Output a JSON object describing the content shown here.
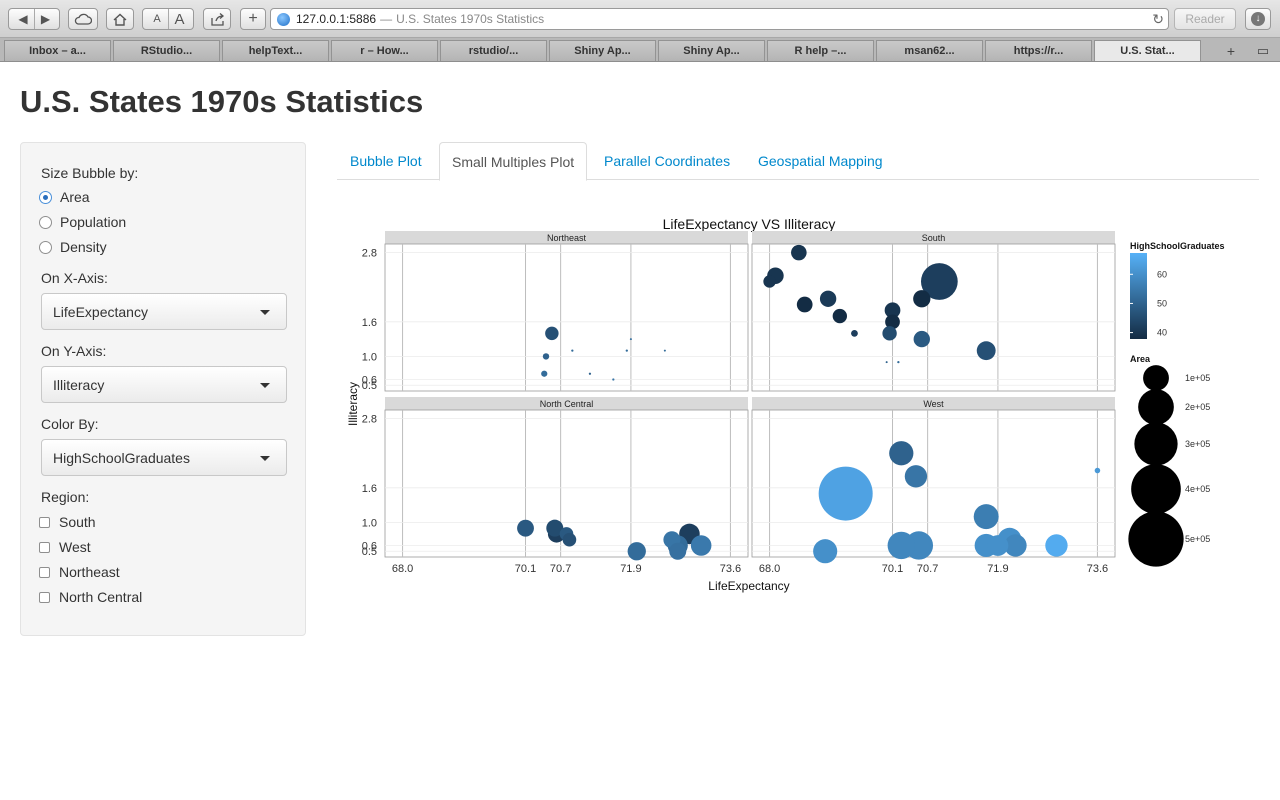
{
  "browser": {
    "url_host": "127.0.0.1:5886",
    "url_separator": "—",
    "page_title": "U.S. States 1970s Statistics",
    "reader_label": "Reader",
    "font_small": "A",
    "font_large": "A",
    "tabs": [
      {
        "label": "Inbox – a..."
      },
      {
        "label": "RStudio..."
      },
      {
        "label": "helpText..."
      },
      {
        "label": "r – How..."
      },
      {
        "label": "rstudio/..."
      },
      {
        "label": "Shiny Ap..."
      },
      {
        "label": "Shiny Ap..."
      },
      {
        "label": "R help –..."
      },
      {
        "label": "msan62..."
      },
      {
        "label": "https://r..."
      },
      {
        "label": "U.S. Stat..."
      }
    ]
  },
  "app": {
    "title": "U.S. States 1970s Statistics"
  },
  "sidebar": {
    "size_label": "Size Bubble by:",
    "size_options": [
      {
        "label": "Area",
        "selected": true
      },
      {
        "label": "Population",
        "selected": false
      },
      {
        "label": "Density",
        "selected": false
      }
    ],
    "x_label": "On X-Axis:",
    "x_value": "LifeExpectancy",
    "y_label": "On Y-Axis:",
    "y_value": "Illiteracy",
    "color_label": "Color By:",
    "color_value": "HighSchoolGraduates",
    "region_label": "Region:",
    "regions": [
      {
        "label": "South",
        "checked": false
      },
      {
        "label": "West",
        "checked": false
      },
      {
        "label": "Northeast",
        "checked": false
      },
      {
        "label": "North Central",
        "checked": false
      }
    ]
  },
  "tabs": [
    {
      "label": "Bubble Plot",
      "active": false
    },
    {
      "label": "Small Multiples Plot",
      "active": true
    },
    {
      "label": "Parallel Coordinates",
      "active": false
    },
    {
      "label": "Geospatial Mapping",
      "active": false
    }
  ],
  "colors": {
    "accent": "#0088cc",
    "panel_bg": "#ffffff",
    "strip_bg": "#d9d9d9",
    "grid": "#d0d0d0",
    "color_low": "#132b43",
    "color_high": "#56b1f7"
  },
  "chart_data": {
    "type": "scatter",
    "title": "LifeExpectancy VS Illiteracy",
    "xlabel": "LifeExpectancy",
    "ylabel": "Illiteracy",
    "x_ticks": [
      "68.0",
      "70.1",
      "70.7",
      "71.9",
      "73.6"
    ],
    "x_tick_values": [
      68.0,
      70.1,
      70.7,
      71.9,
      73.6
    ],
    "y_ticks": [
      "0.5",
      "0.6",
      "1.0",
      "1.6",
      "2.8"
    ],
    "y_tick_values": [
      0.5,
      0.6,
      1.0,
      1.6,
      2.8
    ],
    "xlim": [
      67.7,
      73.9
    ],
    "ylim": [
      0.4,
      2.95
    ],
    "color_legend": {
      "title": "HighSchoolGraduates",
      "range": [
        37.8,
        67.3
      ],
      "ticks": [
        40,
        50,
        60
      ]
    },
    "size_legend": {
      "title": "Area",
      "values": [
        100000,
        200000,
        300000,
        400000,
        500000
      ],
      "labels": [
        "1e+05",
        "2e+05",
        "3e+05",
        "4e+05",
        "5e+05"
      ]
    },
    "facets": [
      {
        "name": "Northeast",
        "points": [
          {
            "x": 70.55,
            "y": 1.4,
            "hs": 46.0,
            "area": 35000
          },
          {
            "x": 70.45,
            "y": 1.0,
            "hs": 50.0,
            "area": 8000
          },
          {
            "x": 70.42,
            "y": 0.7,
            "hs": 52.0,
            "area": 7500
          },
          {
            "x": 70.9,
            "y": 1.1,
            "hs": 52.0,
            "area": 1000
          },
          {
            "x": 71.2,
            "y": 0.7,
            "hs": 50.0,
            "area": 1000
          },
          {
            "x": 71.6,
            "y": 0.6,
            "hs": 54.0,
            "area": 1000
          },
          {
            "x": 71.83,
            "y": 1.1,
            "hs": 52.0,
            "area": 1000
          },
          {
            "x": 71.9,
            "y": 1.3,
            "hs": 52.0,
            "area": 300
          },
          {
            "x": 72.48,
            "y": 1.1,
            "hs": 52.0,
            "area": 600
          }
        ]
      },
      {
        "name": "South",
        "points": [
          {
            "x": 68.0,
            "y": 2.3,
            "hs": 40.0,
            "area": 30000
          },
          {
            "x": 68.1,
            "y": 2.4,
            "hs": 40.0,
            "area": 53000
          },
          {
            "x": 68.5,
            "y": 2.8,
            "hs": 40.0,
            "area": 47000
          },
          {
            "x": 68.6,
            "y": 1.9,
            "hs": 38.0,
            "area": 48000
          },
          {
            "x": 69.0,
            "y": 2.0,
            "hs": 41.0,
            "area": 52000
          },
          {
            "x": 69.2,
            "y": 1.7,
            "hs": 38.0,
            "area": 40000
          },
          {
            "x": 69.45,
            "y": 1.4,
            "hs": 42.0,
            "area": 9000
          },
          {
            "x": 70.1,
            "y": 1.8,
            "hs": 40.0,
            "area": 48000
          },
          {
            "x": 70.1,
            "y": 1.6,
            "hs": 38.0,
            "area": 42000
          },
          {
            "x": 70.05,
            "y": 1.4,
            "hs": 45.0,
            "area": 40000
          },
          {
            "x": 70.0,
            "y": 0.9,
            "hs": 50.0,
            "area": 100
          },
          {
            "x": 70.2,
            "y": 0.9,
            "hs": 52.0,
            "area": 1000
          },
          {
            "x": 70.6,
            "y": 2.0,
            "hs": 38.0,
            "area": 58000
          },
          {
            "x": 70.6,
            "y": 1.3,
            "hs": 48.0,
            "area": 52000
          },
          {
            "x": 70.9,
            "y": 2.3,
            "hs": 42.0,
            "area": 262000
          },
          {
            "x": 71.7,
            "y": 1.1,
            "hs": 46.0,
            "area": 69000
          }
        ]
      },
      {
        "name": "North Central",
        "points": [
          {
            "x": 70.1,
            "y": 0.9,
            "hs": 48.0,
            "area": 55000
          },
          {
            "x": 70.6,
            "y": 0.9,
            "hs": 45.0,
            "area": 56000
          },
          {
            "x": 70.63,
            "y": 0.8,
            "hs": 42.0,
            "area": 58000
          },
          {
            "x": 70.8,
            "y": 0.8,
            "hs": 48.0,
            "area": 36000
          },
          {
            "x": 70.85,
            "y": 0.7,
            "hs": 46.0,
            "area": 36000
          },
          {
            "x": 72.0,
            "y": 0.5,
            "hs": 52.0,
            "area": 65000
          },
          {
            "x": 72.6,
            "y": 0.7,
            "hs": 54.0,
            "area": 56000
          },
          {
            "x": 72.7,
            "y": 0.6,
            "hs": 52.0,
            "area": 79000
          },
          {
            "x": 72.7,
            "y": 0.5,
            "hs": 53.0,
            "area": 56000
          },
          {
            "x": 72.9,
            "y": 0.8,
            "hs": 42.0,
            "area": 82000
          },
          {
            "x": 73.1,
            "y": 0.6,
            "hs": 55.0,
            "area": 82000
          }
        ]
      },
      {
        "name": "West",
        "points": [
          {
            "x": 68.95,
            "y": 0.5,
            "hs": 60.0,
            "area": 113000
          },
          {
            "x": 69.3,
            "y": 1.5,
            "hs": 64.0,
            "area": 566000
          },
          {
            "x": 70.25,
            "y": 2.2,
            "hs": 50.0,
            "area": 114000
          },
          {
            "x": 70.5,
            "y": 1.8,
            "hs": 54.0,
            "area": 97000
          },
          {
            "x": 70.25,
            "y": 0.6,
            "hs": 58.0,
            "area": 146000
          },
          {
            "x": 70.55,
            "y": 0.6,
            "hs": 58.0,
            "area": 156000
          },
          {
            "x": 71.7,
            "y": 1.1,
            "hs": 56.0,
            "area": 121000
          },
          {
            "x": 71.7,
            "y": 0.6,
            "hs": 60.0,
            "area": 104000
          },
          {
            "x": 71.9,
            "y": 0.6,
            "hs": 60.0,
            "area": 84000
          },
          {
            "x": 72.1,
            "y": 0.7,
            "hs": 60.0,
            "area": 110000
          },
          {
            "x": 72.2,
            "y": 0.6,
            "hs": 58.0,
            "area": 97000
          },
          {
            "x": 72.9,
            "y": 0.6,
            "hs": 66.0,
            "area": 97000
          },
          {
            "x": 73.6,
            "y": 1.9,
            "hs": 62.0,
            "area": 6000
          }
        ]
      }
    ]
  }
}
